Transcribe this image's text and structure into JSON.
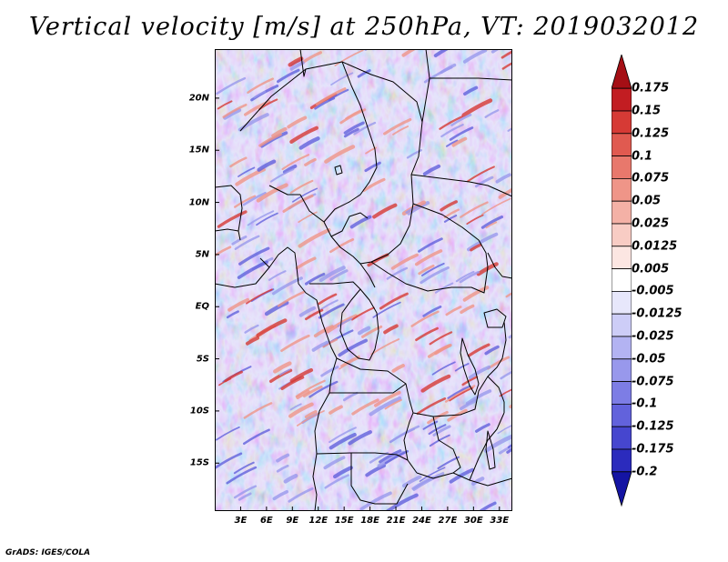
{
  "title": "Vertical velocity [m/s] at 250hPa, VT: 2019032012",
  "footer": "GrADS: IGES/COLA",
  "map": {
    "lat_labels": [
      "20N",
      "15N",
      "10N",
      "5N",
      "EQ",
      "5S",
      "10S",
      "15S"
    ],
    "lat_values": [
      20,
      15,
      10,
      5,
      0,
      -5,
      -10,
      -15
    ],
    "lon_labels": [
      "3E",
      "6E",
      "9E",
      "12E",
      "15E",
      "18E",
      "21E",
      "24E",
      "27E",
      "30E",
      "33E"
    ],
    "lon_values": [
      3,
      6,
      9,
      12,
      15,
      18,
      21,
      24,
      27,
      30,
      33
    ],
    "lon_range": [
      0,
      34.5
    ],
    "lat_range": [
      -19.6,
      24.7
    ],
    "background_color": "#a6a7f2"
  },
  "colorbar": {
    "labels": [
      "0.175",
      "0.15",
      "0.125",
      "0.1",
      "0.075",
      "0.05",
      "0.025",
      "0.0125",
      "0.005",
      "-0.005",
      "-0.0125",
      "-0.025",
      "-0.05",
      "-0.075",
      "-0.1",
      "-0.125",
      "-0.175",
      "-0.2"
    ],
    "colors": [
      "#a50f15",
      "#c21d22",
      "#d63a35",
      "#e05a50",
      "#e8786c",
      "#ef9588",
      "#f4b1a6",
      "#f8ccc4",
      "#fce6e2",
      "#ffffff",
      "#e7e7fb",
      "#cdcdf7",
      "#b3b3f2",
      "#9898ec",
      "#7d7de5",
      "#6262dc",
      "#4646cf",
      "#2b2bbd",
      "#1414a3"
    ]
  }
}
